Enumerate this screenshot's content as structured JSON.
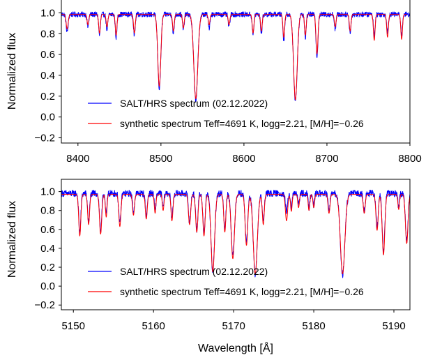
{
  "chart_data": [
    {
      "type": "line",
      "xlabel": "",
      "ylabel": "Normalized flux",
      "xlim": [
        8380,
        8800
      ],
      "ylim": [
        -0.25,
        1.13
      ],
      "xticks": [
        8400,
        8500,
        8600,
        8700,
        8800
      ],
      "xtick_labels": [
        "8400",
        "8500",
        "8600",
        "8700",
        "8800"
      ],
      "yticks": [
        -0.2,
        0.0,
        0.2,
        0.4,
        0.6,
        0.8,
        1.0
      ],
      "ytick_labels": [
        "−0.2",
        "0.0",
        "0.2",
        "0.4",
        "0.6",
        "0.8",
        "1.0"
      ],
      "legend_position": "lower-center",
      "series": [
        {
          "name": "SALT/HRS spectrum (02.12.2022)",
          "color": "#0000ff",
          "continuum": 0.985,
          "noise": 0.025,
          "x_range": [
            8380,
            8800
          ],
          "lines": [
            {
              "x": 8387,
              "depth": 0.17,
              "width": 1.2
            },
            {
              "x": 8412,
              "depth": 0.12,
              "width": 1.0
            },
            {
              "x": 8426,
              "depth": 0.2,
              "width": 1.0
            },
            {
              "x": 8435,
              "depth": 0.15,
              "width": 1.0
            },
            {
              "x": 8446,
              "depth": 0.22,
              "width": 1.0
            },
            {
              "x": 8468,
              "depth": 0.2,
              "width": 1.0
            },
            {
              "x": 8498,
              "depth": 0.71,
              "width": 1.8
            },
            {
              "x": 8515,
              "depth": 0.19,
              "width": 1.0
            },
            {
              "x": 8527,
              "depth": 0.15,
              "width": 1.0
            },
            {
              "x": 8542,
              "depth": 0.82,
              "width": 2.4
            },
            {
              "x": 8558,
              "depth": 0.13,
              "width": 1.0
            },
            {
              "x": 8582,
              "depth": 0.12,
              "width": 1.0
            },
            {
              "x": 8611,
              "depth": 0.2,
              "width": 1.0
            },
            {
              "x": 8621,
              "depth": 0.18,
              "width": 1.0
            },
            {
              "x": 8648,
              "depth": 0.25,
              "width": 1.0
            },
            {
              "x": 8662,
              "depth": 0.83,
              "width": 2.2
            },
            {
              "x": 8674,
              "depth": 0.22,
              "width": 1.0
            },
            {
              "x": 8688,
              "depth": 0.4,
              "width": 1.2
            },
            {
              "x": 8710,
              "depth": 0.14,
              "width": 1.0
            },
            {
              "x": 8728,
              "depth": 0.18,
              "width": 1.0
            },
            {
              "x": 8757,
              "depth": 0.2,
              "width": 1.0
            },
            {
              "x": 8773,
              "depth": 0.17,
              "width": 1.0
            },
            {
              "x": 8790,
              "depth": 0.2,
              "width": 1.0
            }
          ]
        },
        {
          "name": "synthetic spectrum Teff=4691 K, logg=2.21, [M/H]=−0.26",
          "color": "#ff0000",
          "continuum": 0.985,
          "noise": 0.0,
          "x_range": [
            8380,
            8796
          ],
          "lines": [
            {
              "x": 8387,
              "depth": 0.14,
              "width": 1.2
            },
            {
              "x": 8412,
              "depth": 0.1,
              "width": 1.0
            },
            {
              "x": 8426,
              "depth": 0.18,
              "width": 1.0
            },
            {
              "x": 8435,
              "depth": 0.12,
              "width": 1.0
            },
            {
              "x": 8446,
              "depth": 0.2,
              "width": 1.0
            },
            {
              "x": 8468,
              "depth": 0.18,
              "width": 1.0
            },
            {
              "x": 8498,
              "depth": 0.69,
              "width": 1.8
            },
            {
              "x": 8515,
              "depth": 0.16,
              "width": 1.0
            },
            {
              "x": 8527,
              "depth": 0.13,
              "width": 1.0
            },
            {
              "x": 8542,
              "depth": 0.81,
              "width": 2.4
            },
            {
              "x": 8558,
              "depth": 0.1,
              "width": 1.0
            },
            {
              "x": 8582,
              "depth": 0.1,
              "width": 1.0
            },
            {
              "x": 8611,
              "depth": 0.18,
              "width": 1.0
            },
            {
              "x": 8621,
              "depth": 0.16,
              "width": 1.0
            },
            {
              "x": 8648,
              "depth": 0.22,
              "width": 1.0
            },
            {
              "x": 8662,
              "depth": 0.82,
              "width": 2.2
            },
            {
              "x": 8674,
              "depth": 0.2,
              "width": 1.0
            },
            {
              "x": 8688,
              "depth": 0.38,
              "width": 1.2
            },
            {
              "x": 8710,
              "depth": 0.12,
              "width": 1.0
            },
            {
              "x": 8728,
              "depth": 0.16,
              "width": 1.0
            },
            {
              "x": 8757,
              "depth": 0.25,
              "width": 1.0
            },
            {
              "x": 8773,
              "depth": 0.22,
              "width": 1.0
            },
            {
              "x": 8790,
              "depth": 0.24,
              "width": 1.0
            }
          ]
        }
      ]
    },
    {
      "type": "line",
      "xlabel": "Wavelength [Å]",
      "ylabel": "Normalized flux",
      "xlim": [
        5148.5,
        5192
      ],
      "ylim": [
        -0.25,
        1.13
      ],
      "xticks": [
        5150,
        5160,
        5170,
        5180,
        5190
      ],
      "xtick_labels": [
        "5150",
        "5160",
        "5170",
        "5180",
        "5190"
      ],
      "yticks": [
        -0.2,
        0.0,
        0.2,
        0.4,
        0.6,
        0.8,
        1.0
      ],
      "ytick_labels": [
        "−0.2",
        "0.0",
        "0.2",
        "0.4",
        "0.6",
        "0.8",
        "1.0"
      ],
      "legend_position": "lower-center",
      "series": [
        {
          "name": "SALT/HRS spectrum (02.12.2022)",
          "color": "#0000ff",
          "continuum": 0.98,
          "noise": 0.035,
          "x_range": [
            5148.5,
            5192
          ],
          "lines": [
            {
              "x": 5150.8,
              "depth": 0.42,
              "width": 0.13
            },
            {
              "x": 5151.9,
              "depth": 0.3,
              "width": 0.12
            },
            {
              "x": 5153.4,
              "depth": 0.4,
              "width": 0.14
            },
            {
              "x": 5154.1,
              "depth": 0.22,
              "width": 0.1
            },
            {
              "x": 5155.8,
              "depth": 0.32,
              "width": 0.13
            },
            {
              "x": 5157.5,
              "depth": 0.2,
              "width": 0.12
            },
            {
              "x": 5159.1,
              "depth": 0.24,
              "width": 0.12
            },
            {
              "x": 5160.2,
              "depth": 0.18,
              "width": 0.1
            },
            {
              "x": 5161.2,
              "depth": 0.15,
              "width": 0.1
            },
            {
              "x": 5162.3,
              "depth": 0.26,
              "width": 0.12
            },
            {
              "x": 5164.5,
              "depth": 0.3,
              "width": 0.14
            },
            {
              "x": 5165.4,
              "depth": 0.38,
              "width": 0.14
            },
            {
              "x": 5166.3,
              "depth": 0.42,
              "width": 0.14
            },
            {
              "x": 5167.4,
              "depth": 0.83,
              "width": 0.22
            },
            {
              "x": 5168.9,
              "depth": 0.38,
              "width": 0.13
            },
            {
              "x": 5169.9,
              "depth": 0.66,
              "width": 0.2
            },
            {
              "x": 5171.6,
              "depth": 0.52,
              "width": 0.16
            },
            {
              "x": 5172.7,
              "depth": 0.86,
              "width": 0.25
            },
            {
              "x": 5173.7,
              "depth": 0.3,
              "width": 0.12
            },
            {
              "x": 5176.6,
              "depth": 0.2,
              "width": 0.13
            },
            {
              "x": 5177.2,
              "depth": 0.16,
              "width": 0.1
            },
            {
              "x": 5178.1,
              "depth": 0.12,
              "width": 0.1
            },
            {
              "x": 5179.4,
              "depth": 0.15,
              "width": 0.1
            },
            {
              "x": 5180.0,
              "depth": 0.12,
              "width": 0.1
            },
            {
              "x": 5181.9,
              "depth": 0.18,
              "width": 0.12
            },
            {
              "x": 5183.6,
              "depth": 0.86,
              "width": 0.28
            },
            {
              "x": 5186.3,
              "depth": 0.18,
              "width": 0.12
            },
            {
              "x": 5187.9,
              "depth": 0.36,
              "width": 0.14
            },
            {
              "x": 5188.7,
              "depth": 0.62,
              "width": 0.16
            },
            {
              "x": 5190.6,
              "depth": 0.14,
              "width": 0.1
            },
            {
              "x": 5191.6,
              "depth": 0.5,
              "width": 0.16
            }
          ]
        },
        {
          "name": "synthetic spectrum Teff=4691 K, logg=2.21, [M/H]=−0.26",
          "color": "#ff0000",
          "continuum": 0.97,
          "noise": 0.0,
          "x_range": [
            5148.5,
            5192
          ],
          "lines": [
            {
              "x": 5150.8,
              "depth": 0.44,
              "width": 0.13
            },
            {
              "x": 5151.9,
              "depth": 0.32,
              "width": 0.12
            },
            {
              "x": 5153.4,
              "depth": 0.42,
              "width": 0.14
            },
            {
              "x": 5154.1,
              "depth": 0.24,
              "width": 0.1
            },
            {
              "x": 5155.8,
              "depth": 0.34,
              "width": 0.13
            },
            {
              "x": 5157.5,
              "depth": 0.22,
              "width": 0.12
            },
            {
              "x": 5159.1,
              "depth": 0.26,
              "width": 0.12
            },
            {
              "x": 5160.2,
              "depth": 0.2,
              "width": 0.1
            },
            {
              "x": 5161.2,
              "depth": 0.17,
              "width": 0.1
            },
            {
              "x": 5162.3,
              "depth": 0.28,
              "width": 0.12
            },
            {
              "x": 5164.5,
              "depth": 0.32,
              "width": 0.14
            },
            {
              "x": 5165.4,
              "depth": 0.4,
              "width": 0.14
            },
            {
              "x": 5166.3,
              "depth": 0.44,
              "width": 0.14
            },
            {
              "x": 5167.4,
              "depth": 0.82,
              "width": 0.22
            },
            {
              "x": 5168.9,
              "depth": 0.4,
              "width": 0.13
            },
            {
              "x": 5169.9,
              "depth": 0.68,
              "width": 0.2
            },
            {
              "x": 5171.6,
              "depth": 0.54,
              "width": 0.16
            },
            {
              "x": 5172.7,
              "depth": 0.84,
              "width": 0.25
            },
            {
              "x": 5173.7,
              "depth": 0.32,
              "width": 0.12
            },
            {
              "x": 5176.6,
              "depth": 0.28,
              "width": 0.14
            },
            {
              "x": 5177.2,
              "depth": 0.18,
              "width": 0.1
            },
            {
              "x": 5178.1,
              "depth": 0.14,
              "width": 0.1
            },
            {
              "x": 5179.4,
              "depth": 0.17,
              "width": 0.1
            },
            {
              "x": 5180.0,
              "depth": 0.14,
              "width": 0.1
            },
            {
              "x": 5181.9,
              "depth": 0.2,
              "width": 0.12
            },
            {
              "x": 5183.6,
              "depth": 0.84,
              "width": 0.28
            },
            {
              "x": 5186.3,
              "depth": 0.2,
              "width": 0.12
            },
            {
              "x": 5187.9,
              "depth": 0.38,
              "width": 0.14
            },
            {
              "x": 5188.7,
              "depth": 0.64,
              "width": 0.16
            },
            {
              "x": 5190.6,
              "depth": 0.16,
              "width": 0.1
            },
            {
              "x": 5191.6,
              "depth": 0.52,
              "width": 0.16
            }
          ]
        }
      ]
    }
  ]
}
